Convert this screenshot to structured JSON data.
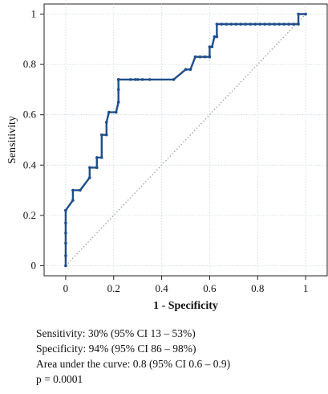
{
  "chart_data": {
    "type": "line",
    "title": "",
    "xlabel": "1 - Specificity",
    "ylabel": "Sensitivity",
    "xlim": [
      -0.09,
      1.09
    ],
    "ylim": [
      -0.04,
      1.04
    ],
    "xticks": [
      0,
      0.2,
      0.4,
      0.6,
      0.8,
      1
    ],
    "yticks": [
      0,
      0.2,
      0.4,
      0.6,
      0.8,
      1
    ],
    "xtick_labels": [
      "0",
      "0.2",
      "0.4",
      "0.6",
      "0.8",
      "1"
    ],
    "ytick_labels": [
      "0",
      "0.2",
      "0.4",
      "0.6",
      "0.8",
      "1"
    ],
    "grid": true,
    "colors": {
      "curve": "#1f4e89",
      "reference": "#9a9a9a",
      "grid": "#c7d3e3"
    },
    "series": [
      {
        "x": [
          0,
          0,
          0,
          0,
          0,
          0,
          0,
          0,
          0.03,
          0.03,
          0.06,
          0.1,
          0.1,
          0.13,
          0.13,
          0.15,
          0.15,
          0.17,
          0.17,
          0.18,
          0.21,
          0.22,
          0.22,
          0.22,
          0.22,
          0.27,
          0.29,
          0.3,
          0.32,
          0.35,
          0.45,
          0.5,
          0.52,
          0.54,
          0.56,
          0.58,
          0.6,
          0.6,
          0.61,
          0.62,
          0.63,
          0.63,
          0.65,
          0.67,
          0.69,
          0.71,
          0.73,
          0.75,
          0.77,
          0.79,
          0.81,
          0.83,
          0.85,
          0.87,
          0.89,
          0.91,
          0.93,
          0.95,
          0.97,
          0.97,
          1
        ],
        "y": [
          0,
          0.04,
          0.09,
          0.13,
          0.17,
          0.22,
          0.22,
          0.22,
          0.26,
          0.3,
          0.3,
          0.35,
          0.39,
          0.39,
          0.43,
          0.43,
          0.52,
          0.52,
          0.57,
          0.61,
          0.61,
          0.65,
          0.7,
          0.74,
          0.74,
          0.74,
          0.74,
          0.74,
          0.74,
          0.74,
          0.74,
          0.78,
          0.78,
          0.83,
          0.83,
          0.83,
          0.83,
          0.87,
          0.87,
          0.91,
          0.91,
          0.96,
          0.96,
          0.96,
          0.96,
          0.96,
          0.96,
          0.96,
          0.96,
          0.96,
          0.96,
          0.96,
          0.96,
          0.96,
          0.96,
          0.96,
          0.96,
          0.96,
          0.96,
          1,
          1
        ],
        "markers": true
      }
    ],
    "reference_line": {
      "x": [
        0,
        1
      ],
      "y": [
        0,
        1
      ],
      "style": "dotted"
    }
  },
  "stats": {
    "sensitivity": "Sensitivity:  30% (95% CI 13 – 53%)",
    "specificity": "Specificity:  94% (95% CI 86 – 98%)",
    "auc": "Area under the curve:  0.8 (95% CI 0.6 – 0.9)",
    "p": "p = 0.0001"
  }
}
